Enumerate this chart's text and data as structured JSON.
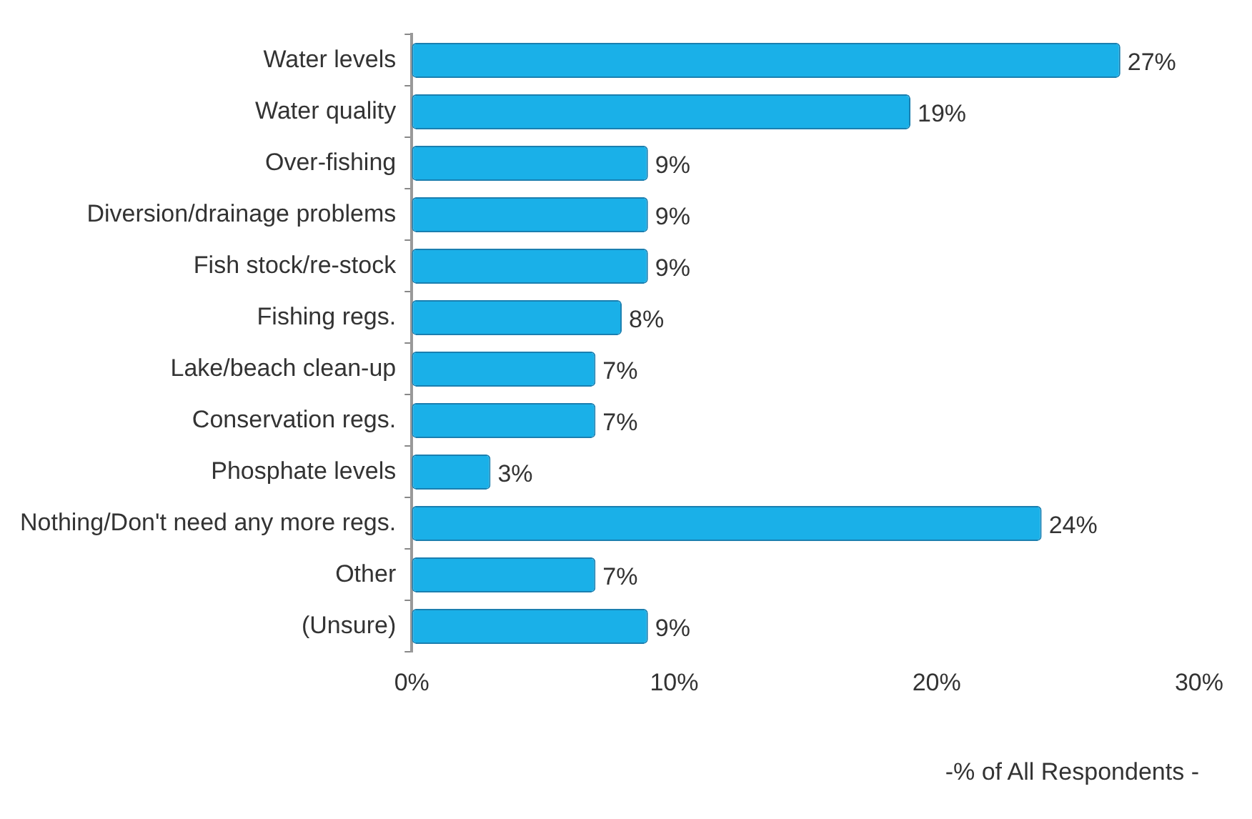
{
  "chart_data": {
    "type": "bar",
    "orientation": "horizontal",
    "xlabel": "-% of All Respondents -",
    "categories": [
      "Water levels",
      "Water quality",
      "Over-fishing",
      "Diversion/drainage problems",
      "Fish stock/re-stock",
      "Fishing regs.",
      "Lake/beach clean-up",
      "Conservation regs.",
      "Phosphate levels",
      "Nothing/Don't need any more regs.",
      "Other",
      "(Unsure)"
    ],
    "values": [
      27,
      19,
      9,
      9,
      9,
      8,
      7,
      7,
      3,
      24,
      7,
      9
    ],
    "value_labels": [
      "27%",
      "19%",
      "9%",
      "9%",
      "9%",
      "8%",
      "7%",
      "7%",
      "3%",
      "24%",
      "7%",
      "9%"
    ],
    "color": "#1ab0e8",
    "xlim": [
      0,
      30
    ],
    "xticks": [
      {
        "value": 0,
        "label": "0%"
      },
      {
        "value": 10,
        "label": "10%"
      },
      {
        "value": 20,
        "label": "20%"
      },
      {
        "value": 30,
        "label": "30%"
      }
    ],
    "grid": false,
    "legend": false
  }
}
